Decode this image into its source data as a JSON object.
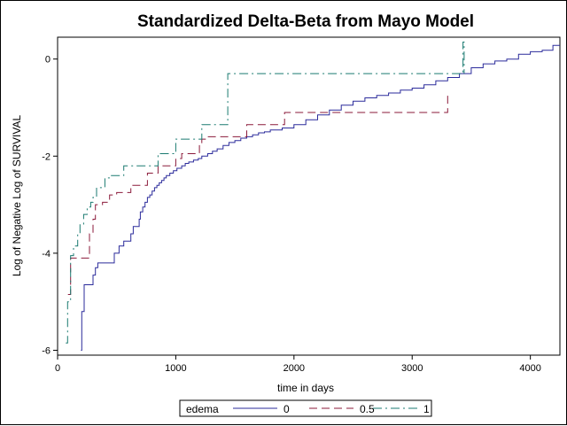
{
  "chart_data": {
    "type": "line",
    "step": true,
    "title": "Standardized Delta-Beta from Mayo Model",
    "xlabel": "time in days",
    "ylabel": "Log of Negative Log of SURVIVAL",
    "xlim": [
      0,
      4250
    ],
    "ylim": [
      -6.1,
      0.45
    ],
    "xticks": [
      0,
      1000,
      2000,
      3000,
      4000
    ],
    "yticks": [
      0,
      -2,
      -4,
      -6
    ],
    "grid": false,
    "legend": {
      "position": "bottom-center",
      "title": "edema"
    },
    "series": [
      {
        "name": "0",
        "color": "#2b2b9b",
        "dash": "solid",
        "x": [
          198,
          205,
          225,
          300,
          320,
          330,
          340,
          350,
          480,
          520,
          560,
          620,
          640,
          690,
          700,
          720,
          740,
          760,
          780,
          800,
          820,
          840,
          860,
          880,
          900,
          920,
          950,
          980,
          1010,
          1050,
          1080,
          1110,
          1150,
          1190,
          1220,
          1270,
          1310,
          1350,
          1400,
          1450,
          1500,
          1550,
          1600,
          1650,
          1700,
          1750,
          1800,
          1900,
          2000,
          2100,
          2200,
          2300,
          2400,
          2500,
          2600,
          2700,
          2800,
          2900,
          3000,
          3100,
          3200,
          3300,
          3400,
          3500,
          3600,
          3700,
          3800,
          3900,
          4000,
          4100,
          4191,
          4250
        ],
        "y": [
          -6.0,
          -5.2,
          -4.65,
          -4.45,
          -4.3,
          -4.3,
          -4.2,
          -4.2,
          -4.0,
          -3.85,
          -3.75,
          -3.6,
          -3.45,
          -3.3,
          -3.15,
          -3.05,
          -2.95,
          -2.85,
          -2.8,
          -2.72,
          -2.65,
          -2.6,
          -2.55,
          -2.5,
          -2.45,
          -2.4,
          -2.35,
          -2.3,
          -2.25,
          -2.2,
          -2.15,
          -2.12,
          -2.08,
          -2.05,
          -2.0,
          -1.95,
          -1.9,
          -1.85,
          -1.78,
          -1.72,
          -1.68,
          -1.63,
          -1.6,
          -1.56,
          -1.52,
          -1.5,
          -1.46,
          -1.42,
          -1.35,
          -1.25,
          -1.15,
          -1.05,
          -0.95,
          -0.87,
          -0.8,
          -0.75,
          -0.7,
          -0.64,
          -0.6,
          -0.53,
          -0.45,
          -0.38,
          -0.3,
          -0.18,
          -0.1,
          -0.04,
          0.0,
          0.1,
          0.15,
          0.18,
          0.28,
          0.28
        ]
      },
      {
        "name": "0.5",
        "color": "#8b1a3a",
        "dash": "dashed",
        "x": [
          88,
          110,
          160,
          260,
          270,
          300,
          320,
          380,
          440,
          500,
          620,
          760,
          850,
          1000,
          1050,
          1200,
          1220,
          1270,
          1530,
          1600,
          1920,
          3290,
          3300,
          3320
        ],
        "y": [
          -4.85,
          -4.1,
          -4.1,
          -4.1,
          -3.6,
          -3.3,
          -3.0,
          -2.95,
          -2.8,
          -2.75,
          -2.6,
          -2.35,
          -2.2,
          -2.05,
          -1.95,
          -1.75,
          -1.65,
          -1.6,
          -1.6,
          -1.35,
          -1.1,
          -1.1,
          -0.75,
          -0.75
        ]
      },
      {
        "name": "1",
        "color": "#1a7a70",
        "dash": "dashdot",
        "x": [
          70,
          85,
          110,
          135,
          170,
          190,
          220,
          250,
          280,
          300,
          330,
          400,
          450,
          560,
          700,
          850,
          1000,
          1200,
          1220,
          1440,
          1500,
          3420,
          3430,
          3440
        ],
        "y": [
          -5.85,
          -5.0,
          -4.05,
          -3.85,
          -3.6,
          -3.4,
          -3.2,
          -3.05,
          -2.95,
          -2.85,
          -2.65,
          -2.45,
          -2.4,
          -2.2,
          -2.2,
          -1.95,
          -1.65,
          -1.65,
          -1.35,
          -0.3,
          -0.3,
          -0.3,
          0.35,
          -0.3
        ]
      }
    ]
  }
}
